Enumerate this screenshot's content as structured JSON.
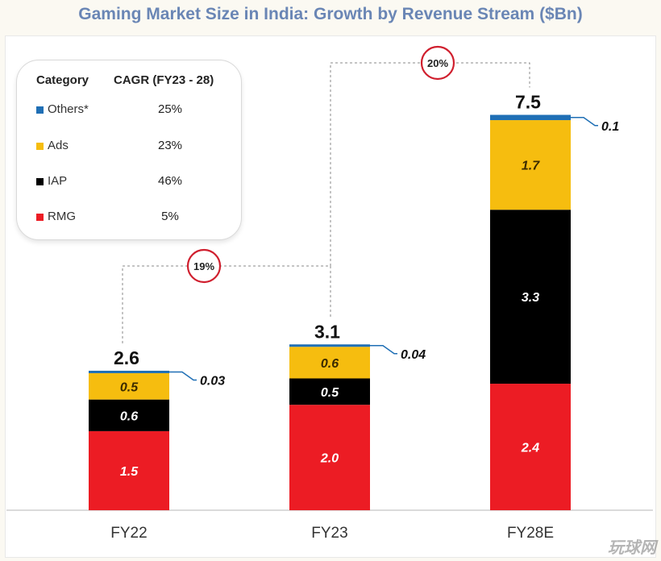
{
  "title": "Gaming Market Size in India: Growth by Revenue Stream ($Bn)",
  "legend": {
    "header_category": "Category",
    "header_cagr": "CAGR (FY23 - 28)",
    "rows": [
      {
        "name": "Others*",
        "cagr": "25%",
        "color": "#1f6fb5"
      },
      {
        "name": "Ads",
        "cagr": "23%",
        "color": "#f6bd0f"
      },
      {
        "name": "IAP",
        "cagr": "46%",
        "color": "#000000"
      },
      {
        "name": "RMG",
        "cagr": "5%",
        "color": "#ec1c24"
      }
    ]
  },
  "chart_data": {
    "type": "bar",
    "stacked": true,
    "categories": [
      "FY22",
      "FY23",
      "FY28E"
    ],
    "totals": [
      "2.6",
      "3.1",
      "7.5"
    ],
    "series": [
      {
        "name": "RMG",
        "color": "#ec1c24",
        "values": [
          1.5,
          2.0,
          2.4
        ],
        "labels": [
          "1.5",
          "2.0",
          "2.4"
        ]
      },
      {
        "name": "IAP",
        "color": "#000000",
        "values": [
          0.6,
          0.5,
          3.3
        ],
        "labels": [
          "0.6",
          "0.5",
          "3.3"
        ]
      },
      {
        "name": "Ads",
        "color": "#f6bd0f",
        "values": [
          0.5,
          0.6,
          1.7
        ],
        "labels": [
          "0.5",
          "0.6",
          "1.7"
        ]
      },
      {
        "name": "Others*",
        "color": "#1f6fb5",
        "values": [
          0.03,
          0.04,
          0.1
        ],
        "labels": [
          "0.03",
          "0.04",
          "0.1"
        ]
      }
    ],
    "growth_annotations": [
      {
        "from": "FY22",
        "to": "FY23",
        "label": "19%"
      },
      {
        "from": "FY23",
        "to": "FY28E",
        "label": "20%"
      }
    ],
    "grid": false
  },
  "watermark": "玩球网"
}
